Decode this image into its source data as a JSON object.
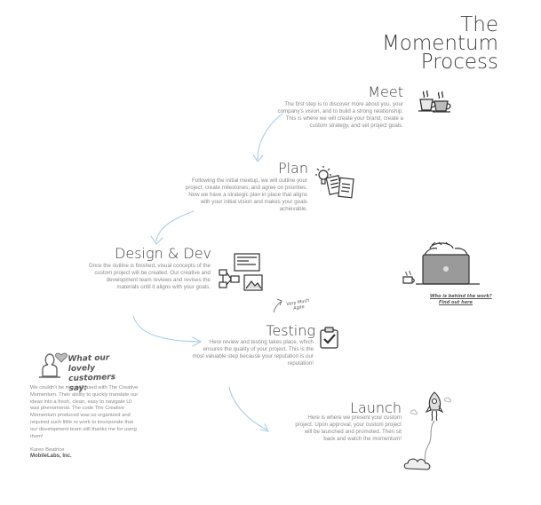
{
  "title": {
    "line1": "The",
    "line2": "Momentum",
    "line3": "Process"
  },
  "stages": [
    {
      "name": "Meet",
      "text": "The first step is to discover more about you, your company's vision, and to build a strong relationship. This is where we will create your brand, create a custom strategy, and set project goals."
    },
    {
      "name": "Plan",
      "text": "Following the initial meetup, we will outline your project, create milestones, and agree on priorities. Now we have a strategic plan in place that aligns with your initial vision and makes your goals achievable."
    },
    {
      "name": "Design & Dev",
      "text": "Once the outline is finished, visual concepts of the custom project will be created. Our creative and development team reviews and revises the materials until it aligns with your goals."
    },
    {
      "name": "Testing",
      "text": "Here review and testing takes place, which ensures the quality of your project. This is the most valuable step because your reputation is our reputation!"
    },
    {
      "name": "Launch",
      "text": "Here is where we present your custom project. Upon approval, your custom project will be launched and promoted. Then sit back and watch the momentum!"
    }
  ],
  "annotations": {
    "very_much_agile": "Very Much Agile",
    "who_behind_line1": "Who is behind the work?",
    "who_behind_line2": "Find out here"
  },
  "testimonial": {
    "heading": "What our lovely customers say:",
    "quote": "We couldn't be more pleased with The Creative Momentum. Their ability to quickly translate our ideas into a fresh, clean, easy to navigate UI was phenomenal. The code The Creative Momentum produced was so organized and required such little re work to incorporate that our development team still thanks me for using them!",
    "author": "Karen Beatrice",
    "company": "MobileLabs, Inc."
  },
  "icons": [
    "coffee-cups-icon",
    "lightbulb-documents-icon",
    "wireframe-layout-icon",
    "checklist-icon",
    "rocket-icon",
    "person-laptop-icon",
    "person-avatar-icon",
    "heart-icon"
  ]
}
